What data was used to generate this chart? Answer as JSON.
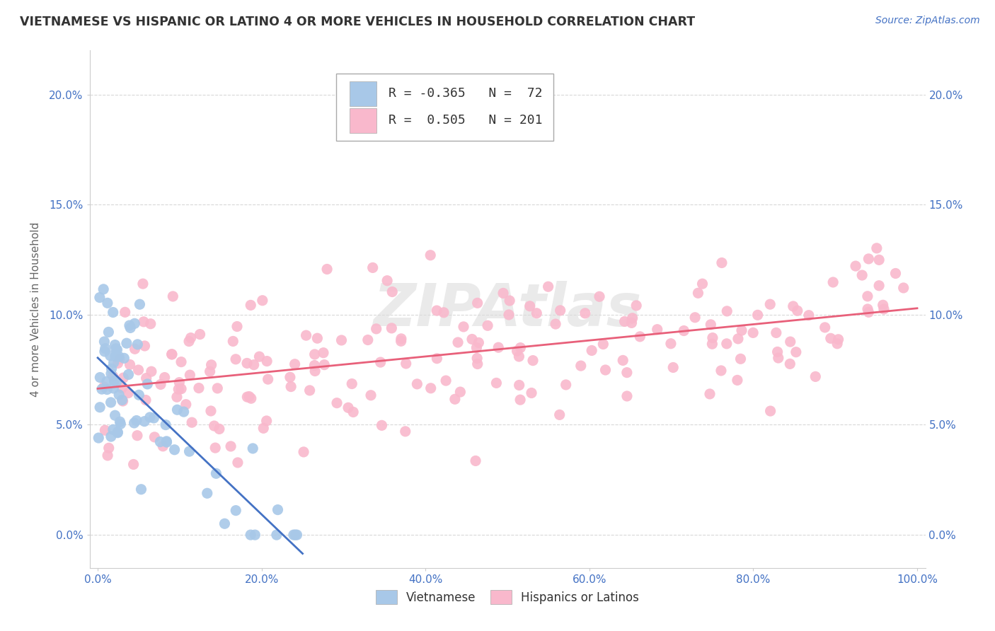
{
  "title": "VIETNAMESE VS HISPANIC OR LATINO 4 OR MORE VEHICLES IN HOUSEHOLD CORRELATION CHART",
  "source": "Source: ZipAtlas.com",
  "ylabel": "4 or more Vehicles in Household",
  "xlabel": "",
  "xlim": [
    -1,
    101
  ],
  "ylim": [
    -1.5,
    22
  ],
  "yticks": [
    0,
    5,
    10,
    15,
    20
  ],
  "ytick_labels": [
    "0.0%",
    "5.0%",
    "10.0%",
    "15.0%",
    "20.0%"
  ],
  "xticks": [
    0,
    20,
    40,
    60,
    80,
    100
  ],
  "xtick_labels": [
    "0.0%",
    "20.0%",
    "40.0%",
    "60.0%",
    "80.0%",
    "100.0%"
  ],
  "series1_color": "#a8c8e8",
  "series2_color": "#f9b8cc",
  "trendline1_color": "#4472c4",
  "trendline2_color": "#e8607a",
  "legend_R1": "-0.365",
  "legend_N1": "72",
  "legend_R2": "0.505",
  "legend_N2": "201",
  "legend_label1": "Vietnamese",
  "legend_label2": "Hispanics or Latinos",
  "watermark": "ZIPAtlas",
  "background_color": "#ffffff",
  "grid_color": "#d8d8d8",
  "title_color": "#333333",
  "source_color": "#4472c4",
  "axis_label_color": "#666666",
  "tick_label_color": "#4472c4",
  "legend_text_color": "#333333"
}
